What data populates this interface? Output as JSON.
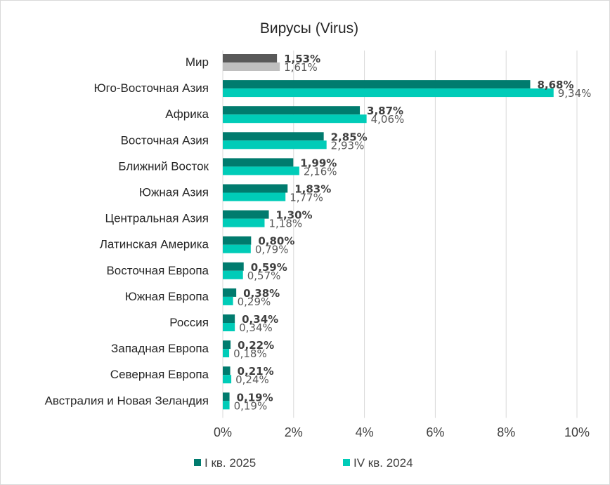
{
  "chart_data": {
    "type": "bar",
    "orientation": "horizontal",
    "title": "Вирусы (Virus)",
    "xlabel": "",
    "ylabel": "",
    "xlim": [
      0,
      10
    ],
    "x_ticks": [
      "0%",
      "2%",
      "4%",
      "6%",
      "8%",
      "10%"
    ],
    "x_tick_values": [
      0,
      2,
      4,
      6,
      8,
      10
    ],
    "grid": "vertical",
    "legend_position": "bottom",
    "categories": [
      "Мир",
      "Юго-Восточная Азия",
      "Африка",
      "Восточная Азия",
      "Ближний Восток",
      "Южная Азия",
      "Центральная Азия",
      "Латинская Америка",
      "Восточная Европа",
      "Южная Европа",
      "Россия",
      "Западная Европа",
      "Северная Европа",
      "Австралия и Новая Зеландия"
    ],
    "series": [
      {
        "name": "I кв. 2025",
        "color": "#007b6e",
        "highlight_color": "#595959",
        "values": [
          1.53,
          8.68,
          3.87,
          2.85,
          1.99,
          1.83,
          1.3,
          0.8,
          0.59,
          0.38,
          0.34,
          0.22,
          0.21,
          0.19
        ],
        "labels": [
          "1,53%",
          "8,68%",
          "3,87%",
          "2,85%",
          "1,99%",
          "1,83%",
          "1,30%",
          "0,80%",
          "0,59%",
          "0,38%",
          "0,34%",
          "0,22%",
          "0,21%",
          "0,19%"
        ]
      },
      {
        "name": "IV кв. 2024",
        "color": "#00ccb8",
        "highlight_color": "#bfbfbf",
        "values": [
          1.61,
          9.34,
          4.06,
          2.93,
          2.16,
          1.77,
          1.18,
          0.79,
          0.57,
          0.29,
          0.34,
          0.18,
          0.24,
          0.19
        ],
        "labels": [
          "1,61%",
          "9,34%",
          "4,06%",
          "2,93%",
          "2,16%",
          "1,77%",
          "1,18%",
          "0,79%",
          "0,57%",
          "0,29%",
          "0,34%",
          "0,18%",
          "0,24%",
          "0,19%"
        ]
      }
    ],
    "highlighted_category": "Мир"
  }
}
